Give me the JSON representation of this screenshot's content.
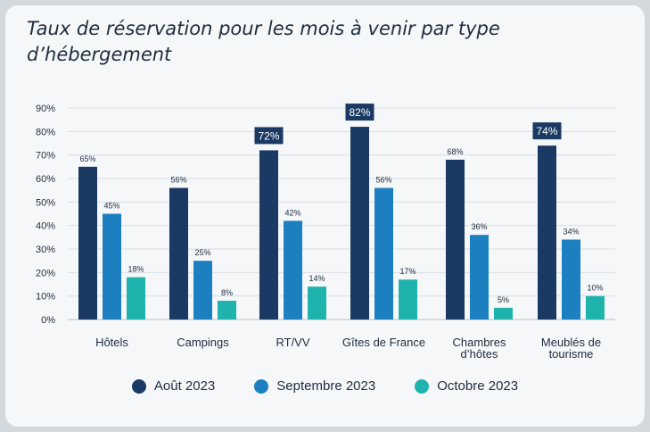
{
  "colors": {
    "aout": "#1b3a63",
    "septembre": "#1b7fc0",
    "octobre": "#1fb3ad",
    "grid": "#d9dee3",
    "text": "#1f2d3d",
    "highlight_label_bg": "#1b3a63"
  },
  "chart_data": {
    "type": "bar",
    "title": "Taux de réservation pour les mois à venir par type d’hébergement",
    "categories": [
      "Hôtels",
      "Campings",
      "RT/VV",
      "Gîtes de France",
      "Chambres d’hôtes",
      "Meublés de tourisme"
    ],
    "series": [
      {
        "name": "Août 2023",
        "values": [
          65,
          56,
          72,
          82,
          68,
          74
        ],
        "labels": [
          "65%",
          "56%",
          "72%",
          "82%",
          "68%",
          "74%"
        ],
        "highlighted": [
          false,
          false,
          true,
          true,
          false,
          true
        ]
      },
      {
        "name": "Septembre 2023",
        "values": [
          45,
          25,
          42,
          56,
          36,
          34
        ],
        "labels": [
          "45%",
          "25%",
          "42%",
          "56%",
          "36%",
          "34%"
        ]
      },
      {
        "name": "Octobre 2023",
        "values": [
          18,
          8,
          14,
          17,
          5,
          10
        ],
        "labels": [
          "18%",
          "8%",
          "14%",
          "17%",
          "5%",
          "10%"
        ]
      }
    ],
    "ylim": [
      0,
      90
    ],
    "yticks": [
      0,
      10,
      20,
      30,
      40,
      50,
      60,
      70,
      80,
      90
    ],
    "ytick_labels": [
      "0%",
      "10%",
      "20%",
      "30%",
      "40%",
      "50%",
      "60%",
      "70%",
      "80%",
      "90%"
    ],
    "grid": true,
    "legend_position": "bottom"
  }
}
